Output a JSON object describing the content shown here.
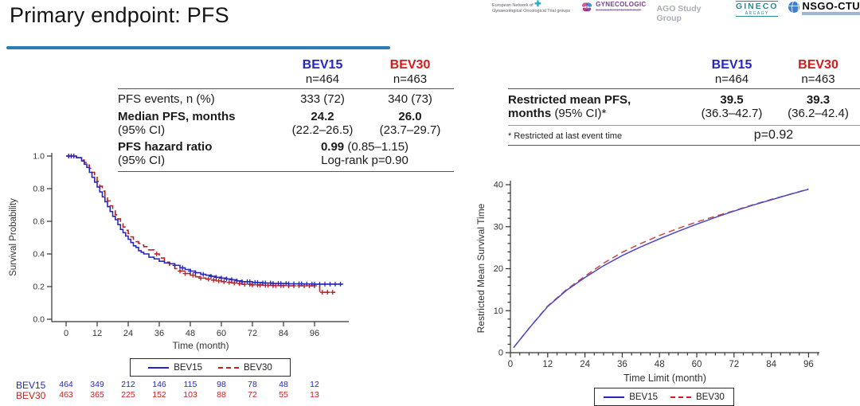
{
  "slide": {
    "title": "Primary endpoint: PFS"
  },
  "colors": {
    "bev15": "#2525c4",
    "bev30": "#cf1d1d",
    "accent": "#2b7cb3"
  },
  "logos": {
    "engot_line1": "European Network of",
    "engot_line2": "Gynaecological Oncological Trial groups",
    "engot_cross": "✚",
    "gcig_name": "GYNECOLOGIC",
    "gcig_sub": "CANCER INTERGROUP",
    "ago": "AGO Study Group",
    "gineco_name": "GINECO",
    "gineco_sub": "ARCAGY",
    "nsgo_name": "NSGO-CTU"
  },
  "legend": {
    "bev15": "BEV15",
    "bev30": "BEV30"
  },
  "left_table": {
    "col1": "BEV15",
    "col2": "BEV30",
    "n1": "n=464",
    "n2": "n=463",
    "events_label": "PFS events, n (%)",
    "events_v1": "333 (72)",
    "events_v2": "340 (73)",
    "median_label_b": "Median PFS, months",
    "median_label_n": "(95% CI)",
    "median_v1_b": "24.2",
    "median_v1_n": "(22.2–26.5)",
    "median_v2_b": "26.0",
    "median_v2_n": "(23.7–29.7)",
    "hr_label_b": "PFS hazard ratio",
    "hr_label_n": "(95% CI)",
    "hr_value_b": "0.99",
    "hr_value_n": " (0.85–1.15)",
    "hr_logrank": "Log-rank p=0.90"
  },
  "right_table": {
    "col1": "BEV15",
    "col2": "BEV30",
    "n1": "n=464",
    "n2": "n=463",
    "rmst_label_b1": "Restricted mean PFS,",
    "rmst_label_b2": "months ",
    "rmst_label_n": "(95% CI)*",
    "rmst_v1_b": "39.5",
    "rmst_v1_n": "(36.3–42.7)",
    "rmst_v2_b": "39.3",
    "rmst_v2_n": "(36.2–42.4)",
    "footnote": "* Restricted at last event time",
    "pvalue": "p=0.92"
  },
  "risk_table": {
    "rows": [
      {
        "label": "BEV15",
        "color": "#2525c4",
        "values": [
          "464",
          "349",
          "212",
          "146",
          "115",
          "98",
          "78",
          "48",
          "12"
        ]
      },
      {
        "label": "BEV30",
        "color": "#cf1d1d",
        "values": [
          "463",
          "365",
          "225",
          "152",
          "103",
          "88",
          "72",
          "55",
          "13"
        ]
      }
    ]
  },
  "chart_data": [
    {
      "type": "line",
      "subtype": "kaplan-meier",
      "title": "",
      "xlabel": "Time (month)",
      "ylabel": "Survival Probability",
      "xlim": [
        0,
        108
      ],
      "ylim": [
        0,
        1
      ],
      "xticks": [
        0,
        12,
        24,
        36,
        48,
        60,
        72,
        84,
        96
      ],
      "yticks": [
        0.0,
        0.2,
        0.4,
        0.6,
        0.8,
        1.0
      ],
      "grid": false,
      "legend_position": "bottom",
      "series": [
        {
          "name": "BEV15",
          "color": "#2929b8",
          "style": "solid",
          "step": true,
          "x": [
            0,
            4,
            6,
            7,
            8,
            9,
            10,
            11,
            12,
            13,
            14,
            15,
            16,
            17,
            18,
            19,
            20,
            21,
            22,
            23,
            24,
            25,
            26,
            27,
            28,
            29,
            30,
            32,
            34,
            36,
            38,
            40,
            42,
            44,
            46,
            48,
            50,
            52,
            54,
            56,
            58,
            60,
            62,
            64,
            66,
            68,
            72,
            76,
            80,
            86,
            92,
            96,
            100,
            104,
            107
          ],
          "y": [
            1.0,
            0.99,
            0.97,
            0.95,
            0.93,
            0.9,
            0.87,
            0.84,
            0.81,
            0.78,
            0.75,
            0.72,
            0.69,
            0.66,
            0.63,
            0.61,
            0.58,
            0.55,
            0.53,
            0.51,
            0.49,
            0.47,
            0.45,
            0.44,
            0.42,
            0.41,
            0.4,
            0.38,
            0.37,
            0.355,
            0.345,
            0.34,
            0.33,
            0.315,
            0.305,
            0.295,
            0.285,
            0.275,
            0.27,
            0.263,
            0.257,
            0.252,
            0.247,
            0.242,
            0.235,
            0.23,
            0.225,
            0.222,
            0.219,
            0.217,
            0.216,
            0.215,
            0.215,
            0.215,
            0.215
          ],
          "censors": [
            1,
            2,
            3,
            42,
            45,
            48,
            50,
            53,
            56,
            58,
            60,
            62,
            64,
            66,
            68,
            70,
            71,
            73,
            74,
            76,
            77,
            79,
            80,
            82,
            83,
            85,
            86,
            88,
            90,
            91,
            93,
            95,
            96,
            98,
            100,
            102,
            104,
            106
          ]
        },
        {
          "name": "BEV30",
          "color": "#bb2020",
          "style": "dashed",
          "step": true,
          "x": [
            0,
            4,
            6,
            7,
            8,
            9,
            10,
            11,
            12,
            13,
            14,
            15,
            16,
            17,
            18,
            19,
            20,
            21,
            22,
            23,
            24,
            25,
            26,
            27,
            28,
            29,
            30,
            32,
            34,
            36,
            38,
            40,
            42,
            44,
            46,
            48,
            50,
            52,
            54,
            56,
            58,
            60,
            62,
            64,
            66,
            68,
            72,
            76,
            80,
            86,
            92,
            96,
            98,
            104
          ],
          "y": [
            1.0,
            0.99,
            0.975,
            0.96,
            0.945,
            0.925,
            0.9,
            0.875,
            0.845,
            0.815,
            0.785,
            0.755,
            0.725,
            0.695,
            0.665,
            0.64,
            0.615,
            0.59,
            0.565,
            0.545,
            0.525,
            0.505,
            0.49,
            0.475,
            0.465,
            0.455,
            0.445,
            0.425,
            0.4,
            0.375,
            0.35,
            0.33,
            0.31,
            0.295,
            0.28,
            0.27,
            0.26,
            0.252,
            0.246,
            0.24,
            0.235,
            0.23,
            0.226,
            0.222,
            0.218,
            0.214,
            0.21,
            0.208,
            0.206,
            0.205,
            0.205,
            0.205,
            0.165,
            0.165
          ],
          "censors": [
            1,
            2,
            3,
            35,
            44,
            46,
            49,
            52,
            55,
            57,
            59,
            61,
            63,
            65,
            67,
            69,
            71,
            72,
            74,
            75,
            77,
            78,
            80,
            81,
            83,
            84,
            86,
            88,
            90,
            92,
            94,
            96,
            99,
            101,
            103
          ]
        }
      ]
    },
    {
      "type": "line",
      "subtype": "rmst",
      "title": "",
      "xlabel": "Time Limit (month)",
      "ylabel": "Restricted Mean Survival Time",
      "xlim": [
        0,
        99
      ],
      "ylim": [
        0,
        40
      ],
      "xticks": [
        0,
        12,
        24,
        36,
        48,
        60,
        72,
        84,
        96
      ],
      "yticks": [
        0,
        10,
        20,
        30,
        40
      ],
      "grid": false,
      "legend_position": "bottom",
      "series": [
        {
          "name": "BEV15",
          "color": "#4a4ac8",
          "style": "solid",
          "step": false,
          "x": [
            1,
            6,
            12,
            18,
            24,
            30,
            36,
            42,
            48,
            54,
            60,
            66,
            72,
            78,
            84,
            90,
            96
          ],
          "y": [
            1.2,
            5.8,
            11.0,
            14.8,
            17.9,
            20.7,
            23.1,
            25.2,
            27.1,
            28.9,
            30.6,
            32.2,
            33.7,
            35.1,
            36.4,
            37.7,
            38.9
          ]
        },
        {
          "name": "BEV30",
          "color": "#c84848",
          "style": "dashed",
          "step": false,
          "x": [
            1,
            6,
            12,
            18,
            24,
            30,
            36,
            42,
            48,
            54,
            60,
            66,
            72,
            78,
            84,
            90,
            96
          ],
          "y": [
            1.2,
            5.8,
            11.1,
            15.0,
            18.2,
            21.3,
            23.9,
            26.0,
            27.9,
            29.6,
            31.1,
            32.5,
            33.8,
            35.2,
            36.5,
            37.7,
            39.0
          ]
        }
      ]
    }
  ]
}
